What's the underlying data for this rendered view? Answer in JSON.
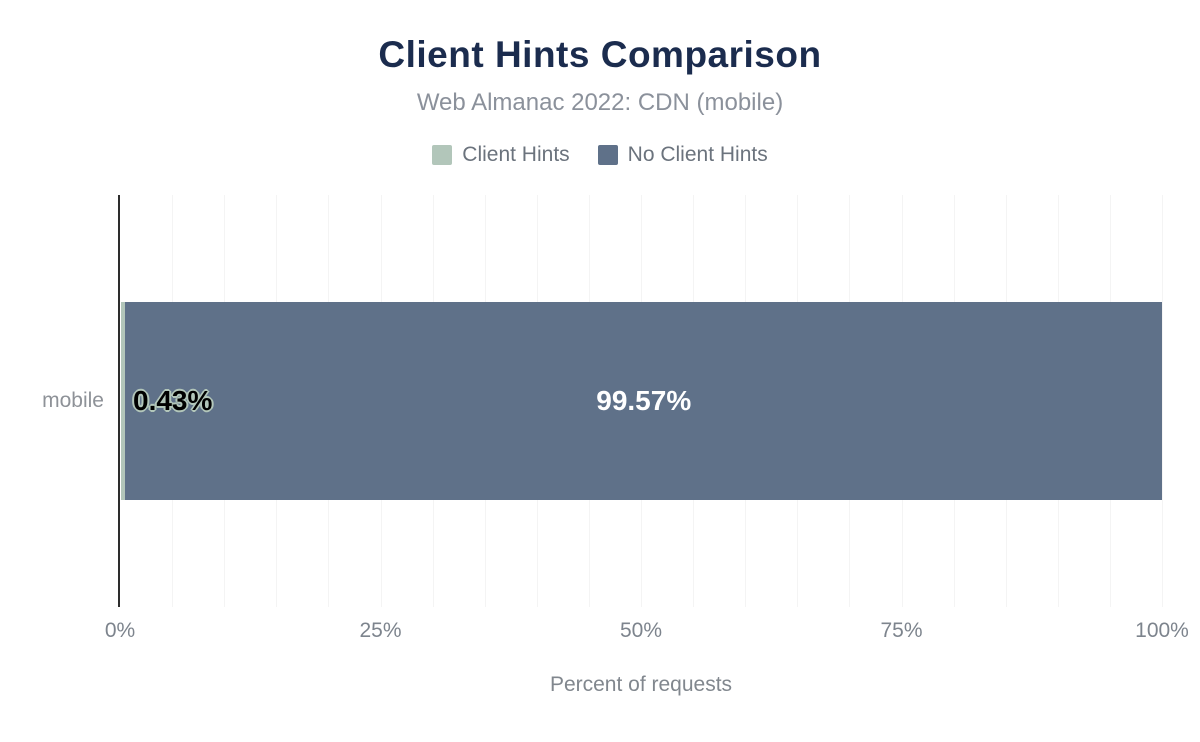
{
  "chart_data": {
    "type": "bar",
    "orientation": "horizontal",
    "stacked": true,
    "title": "Client Hints Comparison",
    "subtitle": "Web Almanac 2022: CDN (mobile)",
    "categories": [
      "mobile"
    ],
    "series": [
      {
        "name": "Client Hints",
        "values": [
          0.43
        ],
        "labels": [
          "0.43%"
        ],
        "color": "#b2c6ba"
      },
      {
        "name": "No Client Hints",
        "values": [
          99.57
        ],
        "labels": [
          "99.57%"
        ],
        "color": "#5f7189"
      }
    ],
    "xlabel": "Percent of requests",
    "xlim": [
      0,
      100
    ],
    "x_ticks": [
      {
        "value": 0,
        "label": "0%"
      },
      {
        "value": 25,
        "label": "25%"
      },
      {
        "value": 50,
        "label": "50%"
      },
      {
        "value": 75,
        "label": "75%"
      },
      {
        "value": 100,
        "label": "100%"
      }
    ],
    "grid": {
      "vertical_interval": 5,
      "color": "#f4f4f4"
    },
    "legend_position": "top"
  },
  "colors": {
    "background": "#ffffff",
    "title": "#1b2c4e",
    "subtitle": "#8b919b",
    "legend_text": "#6b737d",
    "axis_text": "#7d848d",
    "category_text": "#8e9298",
    "axis_line": "#2d2d2d",
    "gridline": "#f4f4f4",
    "value_label_on_dark": "#ffffff",
    "value_label_on_light": "#000000"
  }
}
